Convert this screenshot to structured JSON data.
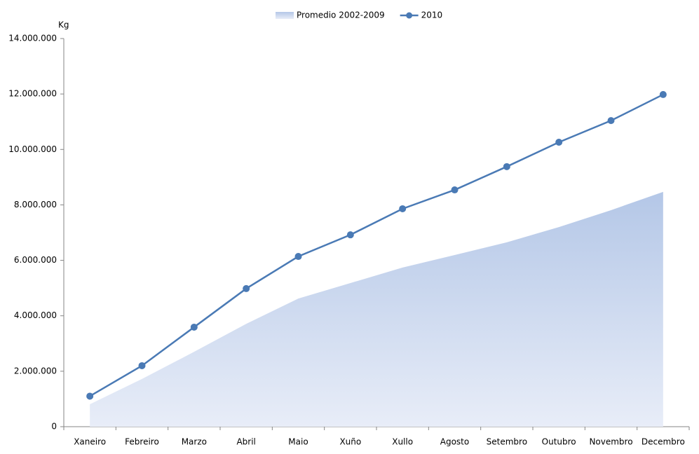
{
  "chart_data": {
    "type": "area_line",
    "y_label": "Kg",
    "categories": [
      "Xaneiro",
      "Febreiro",
      "Marzo",
      "Abril",
      "Maio",
      "Xuño",
      "Xullo",
      "Agosto",
      "Setembro",
      "Outubro",
      "Novembro",
      "Decembro"
    ],
    "series": [
      {
        "name": "Promedio 2002-2009",
        "type": "area",
        "color": "#b4c7e7",
        "values": [
          810000,
          1720000,
          2700000,
          3710000,
          4620000,
          5180000,
          5740000,
          6190000,
          6650000,
          7200000,
          7810000,
          8470000
        ]
      },
      {
        "name": "2010",
        "type": "line",
        "color": "#4a7ab5",
        "values": [
          1100000,
          2200000,
          3590000,
          4980000,
          6140000,
          6920000,
          7860000,
          8540000,
          9380000,
          10260000,
          11040000,
          11980000
        ]
      }
    ],
    "ylim": [
      0,
      14000000
    ],
    "yticks": [
      0,
      {
        "value": 2000000,
        "label": "2.000.000"
      },
      {
        "value": 4000000,
        "label": "4.000.000"
      },
      {
        "value": 6000000,
        "label": "6.000.000"
      },
      {
        "value": 8000000,
        "label": "8.000.000"
      },
      {
        "value": 10000000,
        "label": "10.000.000"
      },
      {
        "value": 12000000,
        "label": "12.000.000"
      },
      {
        "value": 14000000,
        "label": "14.000.000"
      }
    ],
    "legend": "top"
  }
}
